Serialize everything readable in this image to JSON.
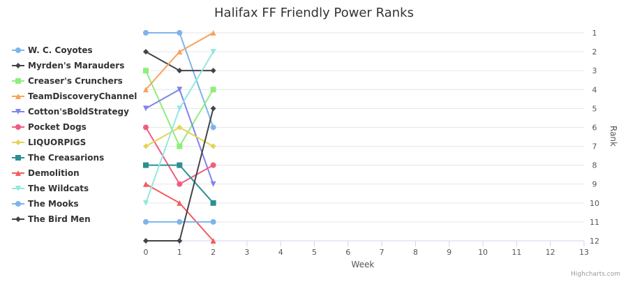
{
  "chart_data": {
    "type": "line",
    "title": "Halifax FF Friendly Power Ranks",
    "xlabel": "Week",
    "ylabel": "Rank",
    "x": [
      0,
      1,
      2
    ],
    "xlim": [
      0,
      13
    ],
    "ylim": [
      1,
      12
    ],
    "y_reversed": true,
    "x_ticks": [
      "0",
      "1",
      "2",
      "3",
      "4",
      "5",
      "6",
      "7",
      "8",
      "9",
      "10",
      "11",
      "12",
      "13"
    ],
    "y_ticks": [
      "1",
      "2",
      "3",
      "4",
      "5",
      "6",
      "7",
      "8",
      "9",
      "10",
      "11",
      "12"
    ],
    "grid": true,
    "legend_position": "left",
    "series": [
      {
        "name": "W. C. Coyotes",
        "values": [
          1,
          1,
          6
        ],
        "color": "#7cb5ec",
        "marker": "circle"
      },
      {
        "name": "Myrden's Marauders",
        "values": [
          2,
          3,
          3
        ],
        "color": "#434348",
        "marker": "diamond"
      },
      {
        "name": "Creaser's Crunchers",
        "values": [
          3,
          7,
          4
        ],
        "color": "#90ed7d",
        "marker": "square"
      },
      {
        "name": "TeamDiscoveryChannel",
        "values": [
          4,
          2,
          1
        ],
        "color": "#f7a35c",
        "marker": "triangle"
      },
      {
        "name": "Cotton'sBoldStrategy",
        "values": [
          5,
          4,
          9
        ],
        "color": "#8085e9",
        "marker": "triangle-down"
      },
      {
        "name": "Pocket Dogs",
        "values": [
          6,
          9,
          8
        ],
        "color": "#f15c80",
        "marker": "circle"
      },
      {
        "name": "LIQUORPIGS",
        "values": [
          7,
          6,
          7
        ],
        "color": "#e4d354",
        "marker": "diamond"
      },
      {
        "name": "The Creasarions",
        "values": [
          8,
          8,
          10
        ],
        "color": "#2b908f",
        "marker": "square"
      },
      {
        "name": "Demolition",
        "values": [
          9,
          10,
          12
        ],
        "color": "#f45b5b",
        "marker": "triangle"
      },
      {
        "name": "The Wildcats",
        "values": [
          10,
          5,
          2
        ],
        "color": "#91e8e1",
        "marker": "triangle-down"
      },
      {
        "name": "The Mooks",
        "values": [
          11,
          11,
          11
        ],
        "color": "#7cb5ec",
        "marker": "circle"
      },
      {
        "name": "The Bird Men",
        "values": [
          12,
          12,
          5
        ],
        "color": "#434348",
        "marker": "diamond"
      }
    ]
  },
  "credits": "Highcharts.com"
}
